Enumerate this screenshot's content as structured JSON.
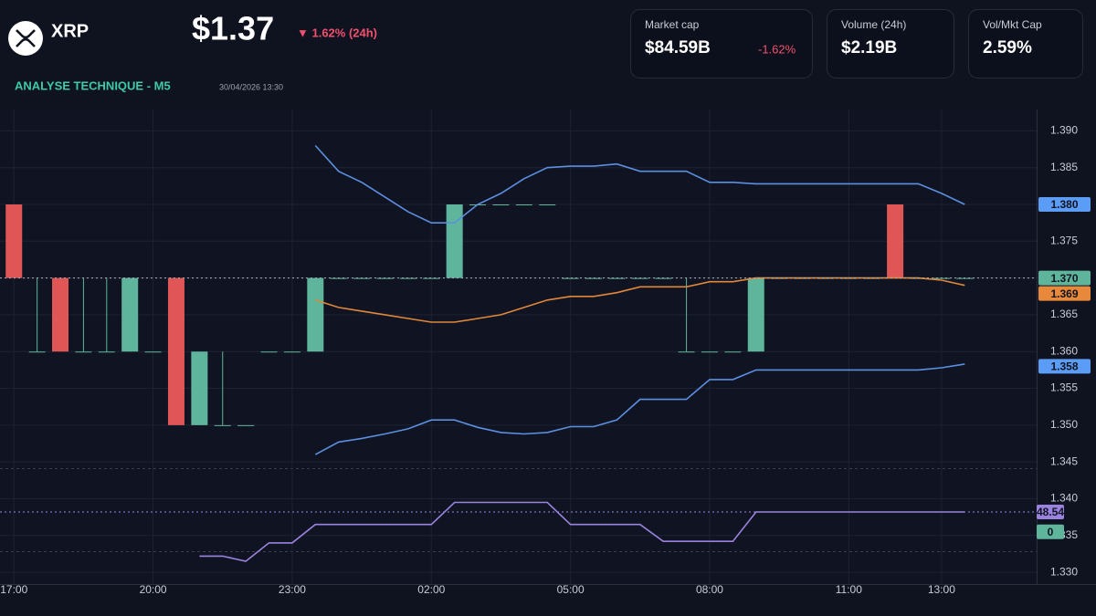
{
  "header": {
    "symbol": "XRP",
    "price": "$1.37",
    "change": "▼ 1.62% (24h)",
    "section": "ANALYSE TECHNIQUE - M5",
    "timestamp": "30/04/2026 13:30"
  },
  "cards": [
    {
      "label": "Market cap",
      "value": "$84.59B",
      "change": "-1.62%"
    },
    {
      "label": "Volume (24h)",
      "value": "$2.19B"
    },
    {
      "label": "Vol/Mkt Cap",
      "value": "2.59%"
    }
  ],
  "chart_data": {
    "type": "candlestick",
    "x": [
      "17:00",
      "17:30",
      "18:00",
      "18:30",
      "19:00",
      "19:30",
      "20:00",
      "20:30",
      "21:00",
      "21:30",
      "22:00",
      "22:30",
      "23:00",
      "23:30",
      "00:00",
      "00:30",
      "01:00",
      "01:30",
      "02:00",
      "02:30",
      "03:00",
      "03:30",
      "04:00",
      "04:30",
      "05:00",
      "05:30",
      "06:00",
      "06:30",
      "07:00",
      "07:30",
      "08:00",
      "08:30",
      "09:00",
      "09:30",
      "10:00",
      "10:30",
      "11:00",
      "11:30",
      "12:00",
      "12:30",
      "13:00",
      "13:30"
    ],
    "open": [
      1.38,
      1.36,
      1.37,
      1.36,
      1.36,
      1.36,
      1.36,
      1.37,
      1.35,
      1.35,
      1.35,
      1.36,
      1.36,
      1.36,
      1.37,
      1.37,
      1.37,
      1.37,
      1.37,
      1.37,
      1.38,
      1.38,
      1.38,
      1.38,
      1.37,
      1.37,
      1.37,
      1.37,
      1.37,
      1.36,
      1.36,
      1.36,
      1.36,
      1.37,
      1.37,
      1.37,
      1.37,
      1.37,
      1.38,
      1.37,
      1.37,
      1.37
    ],
    "high": [
      1.38,
      1.37,
      1.37,
      1.37,
      1.37,
      1.37,
      1.36,
      1.37,
      1.36,
      1.36,
      1.35,
      1.36,
      1.36,
      1.37,
      1.37,
      1.37,
      1.37,
      1.37,
      1.37,
      1.38,
      1.38,
      1.38,
      1.38,
      1.38,
      1.37,
      1.37,
      1.37,
      1.37,
      1.37,
      1.37,
      1.36,
      1.36,
      1.37,
      1.37,
      1.37,
      1.37,
      1.37,
      1.37,
      1.38,
      1.37,
      1.37,
      1.37
    ],
    "low": [
      1.37,
      1.36,
      1.36,
      1.36,
      1.36,
      1.36,
      1.36,
      1.35,
      1.35,
      1.35,
      1.35,
      1.36,
      1.36,
      1.36,
      1.37,
      1.37,
      1.37,
      1.37,
      1.37,
      1.37,
      1.38,
      1.38,
      1.38,
      1.38,
      1.37,
      1.37,
      1.37,
      1.37,
      1.37,
      1.36,
      1.36,
      1.36,
      1.36,
      1.37,
      1.37,
      1.37,
      1.37,
      1.37,
      1.37,
      1.37,
      1.37,
      1.37
    ],
    "close": [
      1.37,
      1.36,
      1.36,
      1.36,
      1.36,
      1.37,
      1.36,
      1.35,
      1.36,
      1.35,
      1.35,
      1.36,
      1.36,
      1.37,
      1.37,
      1.37,
      1.37,
      1.37,
      1.37,
      1.38,
      1.38,
      1.38,
      1.38,
      1.38,
      1.37,
      1.37,
      1.37,
      1.37,
      1.37,
      1.36,
      1.36,
      1.36,
      1.37,
      1.37,
      1.37,
      1.37,
      1.37,
      1.37,
      1.37,
      1.37,
      1.37,
      1.37
    ],
    "up_color": "#5fb59c",
    "down_color": "#e05656",
    "overlays": [
      {
        "color": "#5b8fe0",
        "values": [
          null,
          null,
          null,
          null,
          null,
          null,
          null,
          null,
          null,
          null,
          null,
          null,
          null,
          1.388,
          1.3845,
          1.383,
          1.381,
          1.379,
          1.3775,
          1.3775,
          1.38,
          1.3815,
          1.3835,
          1.385,
          1.3852,
          1.3852,
          1.3855,
          1.3845,
          1.3845,
          1.3845,
          1.383,
          1.383,
          1.3828,
          1.3828,
          1.3828,
          1.3828,
          1.3828,
          1.3828,
          1.3828,
          1.3828,
          1.3815,
          1.38
        ]
      },
      {
        "color": "#e0873a",
        "values": [
          null,
          null,
          null,
          null,
          null,
          null,
          null,
          null,
          null,
          null,
          null,
          null,
          null,
          1.367,
          1.366,
          1.3655,
          1.365,
          1.3645,
          1.364,
          1.364,
          1.3645,
          1.365,
          1.366,
          1.367,
          1.3675,
          1.3675,
          1.368,
          1.3688,
          1.3688,
          1.3688,
          1.3695,
          1.3695,
          1.37,
          1.37,
          1.37,
          1.37,
          1.37,
          1.37,
          1.37,
          1.37,
          1.3697,
          1.369
        ]
      },
      {
        "color": "#5b8fe0",
        "values": [
          null,
          null,
          null,
          null,
          null,
          null,
          null,
          null,
          null,
          null,
          null,
          null,
          null,
          1.346,
          1.3477,
          1.3482,
          1.3488,
          1.3495,
          1.3507,
          1.3507,
          1.3497,
          1.349,
          1.3488,
          1.349,
          1.3498,
          1.3498,
          1.3507,
          1.3535,
          1.3535,
          1.3535,
          1.3562,
          1.3562,
          1.3575,
          1.3575,
          1.3575,
          1.3575,
          1.3575,
          1.3575,
          1.3575,
          1.3575,
          1.3578,
          1.3583
        ]
      },
      {
        "color": "#9a83de",
        "values": [
          null,
          null,
          null,
          null,
          null,
          null,
          null,
          null,
          1.3322,
          1.3322,
          1.3315,
          1.334,
          1.334,
          1.3365,
          1.3365,
          1.3365,
          1.3365,
          1.3365,
          1.3365,
          1.3395,
          1.3395,
          1.3395,
          1.3395,
          1.3395,
          1.3365,
          1.3365,
          1.3365,
          1.3365,
          1.3342,
          1.3342,
          1.3342,
          1.3342,
          1.3382,
          1.3382,
          1.3382,
          1.3382,
          1.3382,
          1.3382,
          1.3382,
          1.3382,
          1.3382,
          1.3382
        ]
      }
    ],
    "xlim": [
      "16:42",
      "15:03"
    ],
    "xticks": [
      "17:00",
      "20:00",
      "23:00",
      "02:00",
      "05:00",
      "08:00",
      "11:00",
      "13:00"
    ],
    "ylim": [
      1.3284,
      1.3929
    ],
    "yticks": [
      {
        "value": 1.39,
        "label": "1.390"
      },
      1.385,
      {
        "value": 1.38,
        "label": "1.380"
      },
      1.375,
      {
        "value": 1.37,
        "label": "1.370"
      },
      1.365,
      {
        "value": 1.36,
        "label": "1.360"
      },
      1.355,
      {
        "value": 1.35,
        "label": "1.350"
      },
      1.345,
      {
        "value": 1.34,
        "label": "1.340"
      },
      1.335,
      {
        "value": 1.33,
        "label": "1.330"
      }
    ],
    "grid": true,
    "price_tags": [
      {
        "value": 1.38,
        "label": "1.380",
        "color": "#5b9cf6"
      },
      {
        "value": 1.37,
        "label": "1.370",
        "color": "#5fb59c"
      },
      {
        "value": 1.369,
        "label": "1.369",
        "color": "#e8883a"
      },
      {
        "value": 1.358,
        "label": "1.358",
        "color": "#5b9cf6"
      },
      {
        "value": 1.3382,
        "label": "48.54",
        "color": "#9a83de"
      },
      {
        "value": 1.3355,
        "label": "0",
        "color": "#5fb59c"
      }
    ]
  }
}
